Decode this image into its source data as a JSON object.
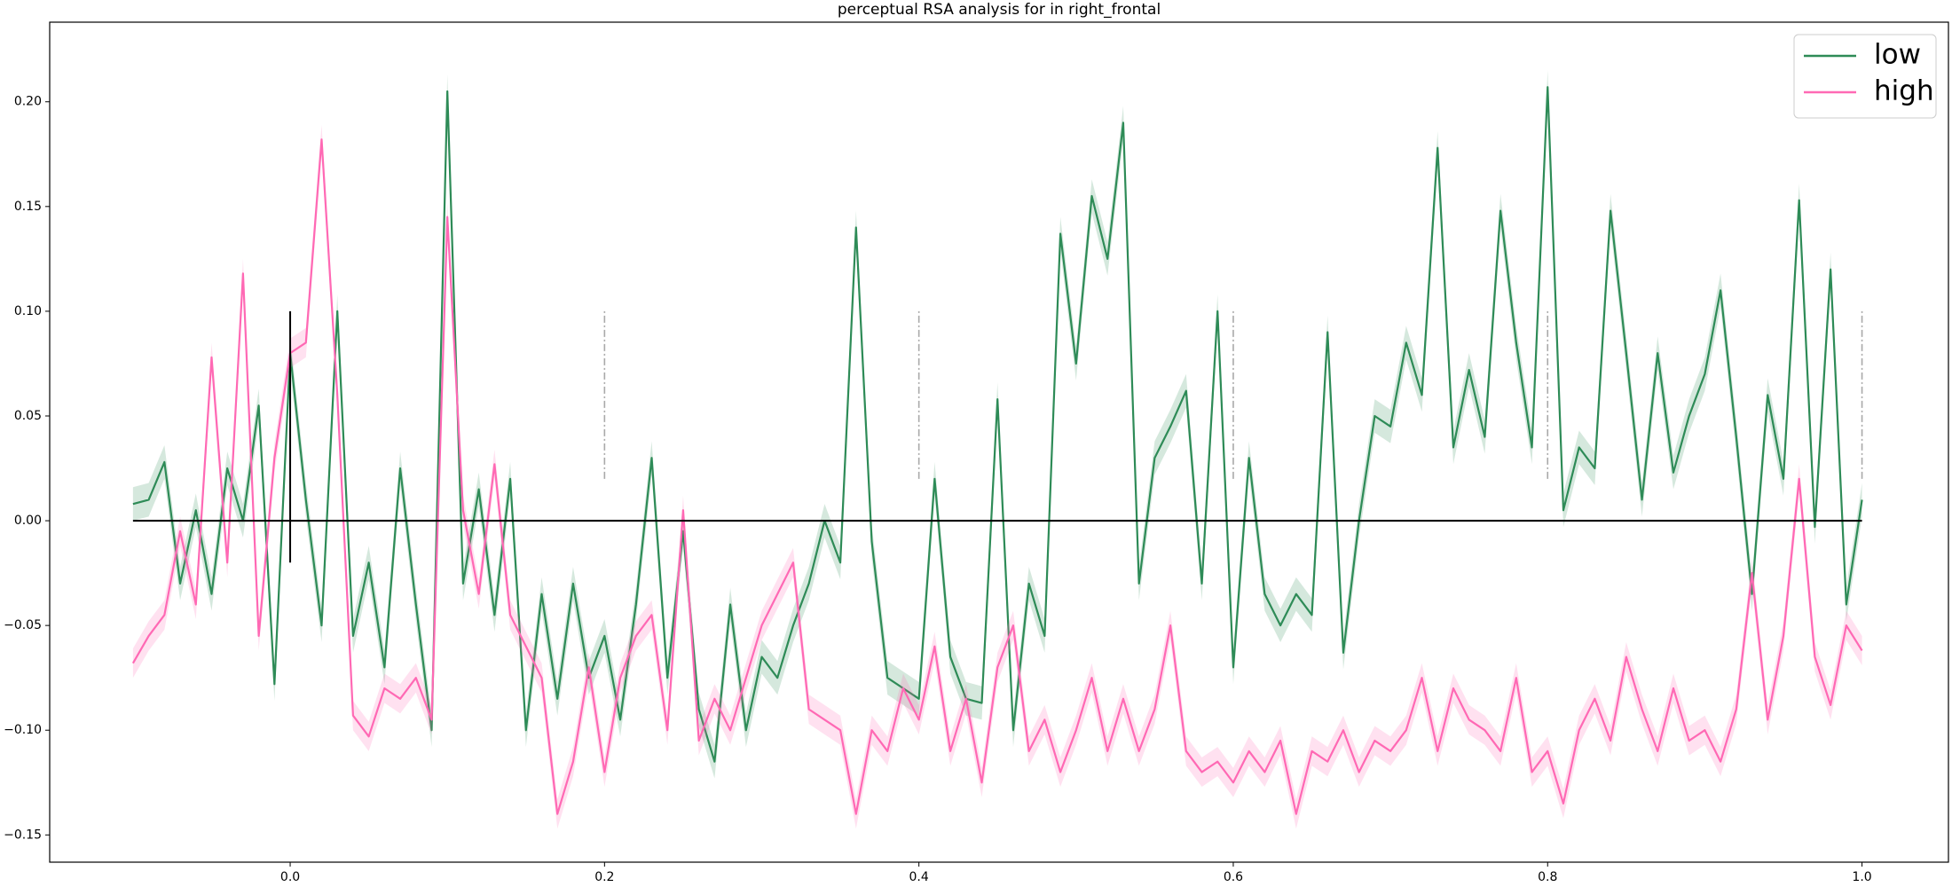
{
  "chart_data": {
    "type": "line",
    "title": "perceptual RSA analysis for in right_frontal",
    "x": [
      -0.1,
      -0.09,
      -0.08,
      -0.07,
      -0.06,
      -0.05,
      -0.04,
      -0.03,
      -0.02,
      -0.01,
      0.0,
      0.01,
      0.02,
      0.03,
      0.04,
      0.05,
      0.06,
      0.07,
      0.08,
      0.09,
      0.1,
      0.11,
      0.12,
      0.13,
      0.14,
      0.15,
      0.16,
      0.17,
      0.18,
      0.19,
      0.2,
      0.21,
      0.22,
      0.23,
      0.24,
      0.25,
      0.26,
      0.27,
      0.28,
      0.29,
      0.3,
      0.31,
      0.32,
      0.33,
      0.34,
      0.35,
      0.36,
      0.37,
      0.38,
      0.39,
      0.4,
      0.41,
      0.42,
      0.43,
      0.44,
      0.45,
      0.46,
      0.47,
      0.48,
      0.49,
      0.5,
      0.51,
      0.52,
      0.53,
      0.54,
      0.55,
      0.56,
      0.57,
      0.58,
      0.59,
      0.6,
      0.61,
      0.62,
      0.63,
      0.64,
      0.65,
      0.66,
      0.67,
      0.68,
      0.69,
      0.7,
      0.71,
      0.72,
      0.73,
      0.74,
      0.75,
      0.76,
      0.77,
      0.78,
      0.79,
      0.8,
      0.81,
      0.82,
      0.83,
      0.84,
      0.85,
      0.86,
      0.87,
      0.88,
      0.89,
      0.9,
      0.91,
      0.92,
      0.93,
      0.94,
      0.95,
      0.96,
      0.97,
      0.98,
      0.99,
      1.0
    ],
    "series": [
      {
        "name": "low",
        "color": "#2e8b57",
        "error": 0.008,
        "values": [
          0.008,
          0.01,
          0.028,
          -0.03,
          0.005,
          -0.035,
          0.025,
          0.0,
          0.055,
          -0.078,
          0.08,
          0.01,
          -0.05,
          0.1,
          -0.055,
          -0.02,
          -0.07,
          0.025,
          -0.04,
          -0.1,
          0.205,
          -0.03,
          0.015,
          -0.045,
          0.02,
          -0.1,
          -0.035,
          -0.085,
          -0.03,
          -0.075,
          -0.055,
          -0.095,
          -0.04,
          0.03,
          -0.075,
          -0.005,
          -0.09,
          -0.115,
          -0.04,
          -0.1,
          -0.065,
          -0.075,
          -0.05,
          -0.03,
          0.0,
          -0.02,
          0.14,
          -0.01,
          -0.075,
          -0.08,
          -0.085,
          0.02,
          -0.065,
          -0.085,
          -0.087,
          0.058,
          -0.1,
          -0.03,
          -0.055,
          0.137,
          0.075,
          0.155,
          0.125,
          0.19,
          -0.03,
          0.03,
          0.045,
          0.062,
          -0.03,
          0.1,
          -0.07,
          0.03,
          -0.035,
          -0.05,
          -0.035,
          -0.045,
          0.09,
          -0.063,
          0.0,
          0.05,
          0.045,
          0.085,
          0.06,
          0.178,
          0.035,
          0.072,
          0.04,
          0.148,
          0.085,
          0.035,
          0.207,
          0.005,
          0.035,
          0.025,
          0.148,
          0.08,
          0.01,
          0.08,
          0.023,
          0.05,
          0.07,
          0.11,
          0.04,
          -0.035,
          0.06,
          0.02,
          0.153,
          -0.003,
          0.12,
          -0.04,
          0.01
        ]
      },
      {
        "name": "high",
        "color": "#ff69b4",
        "error": 0.007,
        "values": [
          -0.068,
          -0.055,
          -0.045,
          -0.005,
          -0.04,
          0.078,
          -0.02,
          0.118,
          -0.055,
          0.03,
          0.08,
          0.085,
          0.182,
          0.06,
          -0.093,
          -0.103,
          -0.08,
          -0.085,
          -0.075,
          -0.095,
          0.145,
          0.005,
          -0.035,
          0.027,
          -0.045,
          -0.06,
          -0.075,
          -0.14,
          -0.115,
          -0.07,
          -0.12,
          -0.075,
          -0.055,
          -0.045,
          -0.1,
          0.005,
          -0.105,
          -0.085,
          -0.1,
          -0.075,
          -0.05,
          -0.035,
          -0.02,
          -0.09,
          -0.095,
          -0.1,
          -0.14,
          -0.1,
          -0.11,
          -0.08,
          -0.095,
          -0.06,
          -0.11,
          -0.085,
          -0.125,
          -0.07,
          -0.05,
          -0.11,
          -0.095,
          -0.12,
          -0.1,
          -0.075,
          -0.11,
          -0.085,
          -0.11,
          -0.09,
          -0.05,
          -0.11,
          -0.12,
          -0.115,
          -0.125,
          -0.11,
          -0.12,
          -0.105,
          -0.14,
          -0.11,
          -0.115,
          -0.1,
          -0.12,
          -0.105,
          -0.11,
          -0.1,
          -0.075,
          -0.11,
          -0.08,
          -0.095,
          -0.1,
          -0.11,
          -0.075,
          -0.12,
          -0.11,
          -0.135,
          -0.1,
          -0.085,
          -0.105,
          -0.065,
          -0.09,
          -0.11,
          -0.08,
          -0.105,
          -0.1,
          -0.115,
          -0.09,
          -0.025,
          -0.095,
          -0.055,
          0.02,
          -0.065,
          -0.088,
          -0.05,
          -0.062
        ]
      }
    ],
    "hline": {
      "y": 0,
      "xmin": -0.1,
      "xmax": 1.0,
      "color": "#000000"
    },
    "vlines": [
      {
        "x": 0,
        "ymin": -0.02,
        "ymax": 0.1,
        "color": "#000000",
        "style": "solid"
      },
      {
        "x": 0.2,
        "ymin": 0.02,
        "ymax": 0.1,
        "color": "#a9a9a9",
        "style": "dashdot"
      },
      {
        "x": 0.4,
        "ymin": 0.02,
        "ymax": 0.1,
        "color": "#a9a9a9",
        "style": "dashdot"
      },
      {
        "x": 0.6,
        "ymin": 0.02,
        "ymax": 0.1,
        "color": "#a9a9a9",
        "style": "dashdot"
      },
      {
        "x": 0.8,
        "ymin": 0.02,
        "ymax": 0.1,
        "color": "#a9a9a9",
        "style": "dashdot"
      },
      {
        "x": 1.0,
        "ymin": 0.02,
        "ymax": 0.1,
        "color": "#a9a9a9",
        "style": "dashdot"
      }
    ],
    "xlim": [
      -0.153,
      1.055
    ],
    "ylim": [
      -0.163,
      0.238
    ],
    "xticks": [
      {
        "value": 0,
        "label": "0.0"
      },
      {
        "value": 0.2,
        "label": "0.2"
      },
      {
        "value": 0.4,
        "label": "0.4"
      },
      {
        "value": 0.6,
        "label": "0.6"
      },
      {
        "value": 0.8,
        "label": "0.8"
      },
      {
        "value": 1.0,
        "label": "1.0"
      }
    ],
    "yticks": [
      {
        "value": -0.15,
        "label": "−0.15"
      },
      {
        "value": -0.1,
        "label": "−0.10"
      },
      {
        "value": -0.05,
        "label": "−0.05"
      },
      {
        "value": 0,
        "label": "0.00"
      },
      {
        "value": 0.05,
        "label": "0.05"
      },
      {
        "value": 0.1,
        "label": "0.10"
      },
      {
        "value": 0.15,
        "label": "0.15"
      },
      {
        "value": 0.2,
        "label": "0.20"
      }
    ],
    "grid": false,
    "legend": "upper right"
  }
}
